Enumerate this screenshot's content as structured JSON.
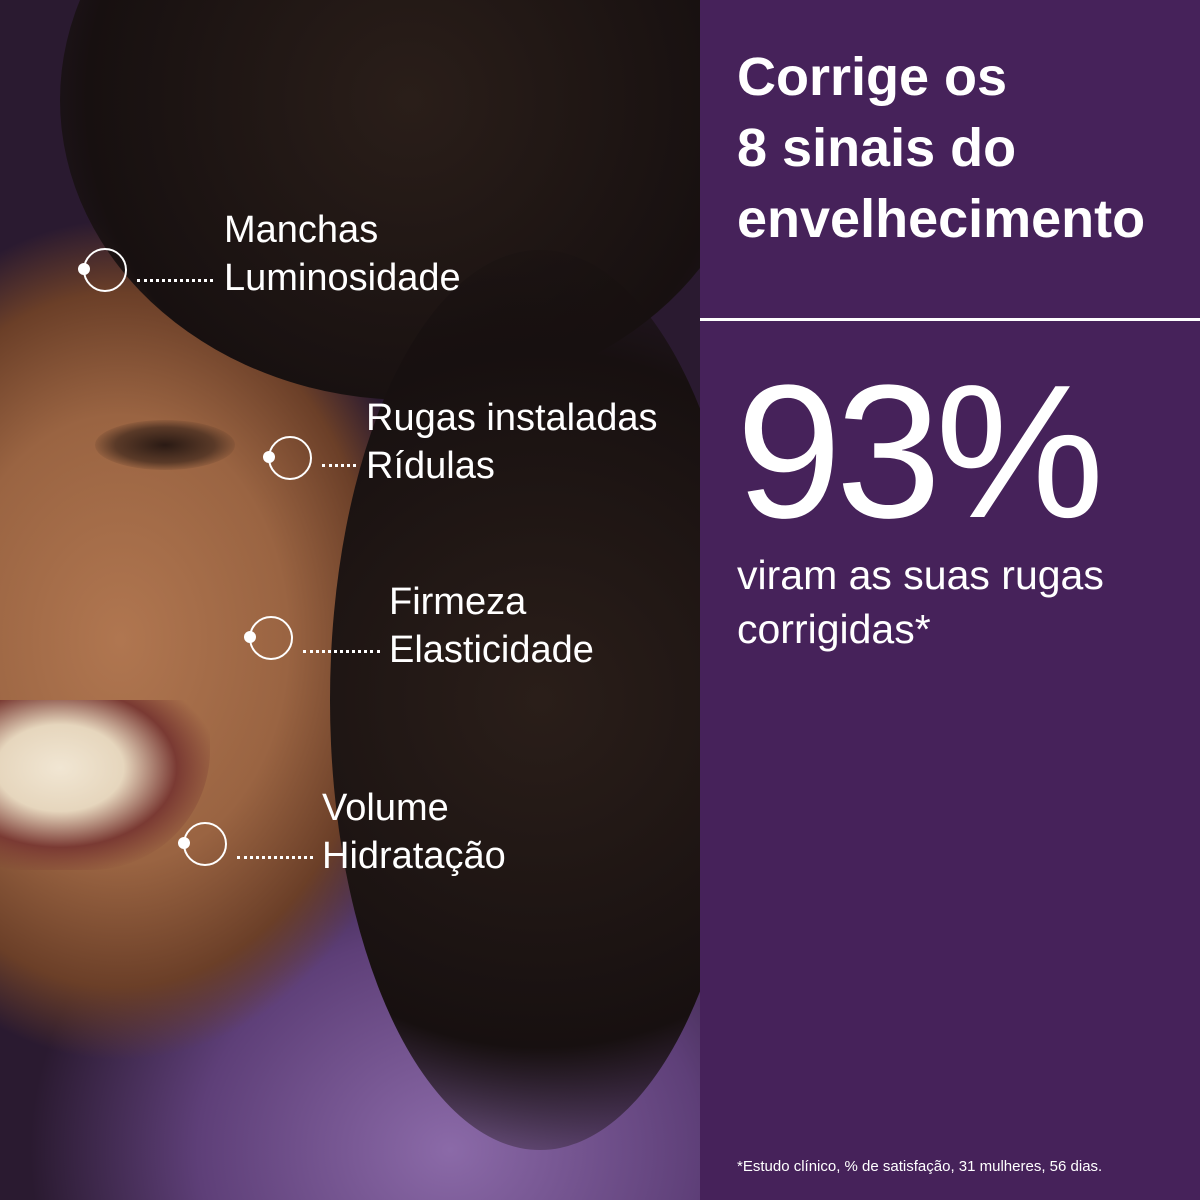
{
  "colors": {
    "panel": "#46225a",
    "text": "#ffffff"
  },
  "markers": [
    {
      "icon": "target-circle-icon",
      "lines": [
        "Manchas",
        "Luminosidade"
      ]
    },
    {
      "icon": "target-circle-icon",
      "lines": [
        "Rugas instaladas",
        "Rídulas"
      ]
    },
    {
      "icon": "target-circle-icon",
      "lines": [
        "Firmeza",
        "Elasticidade"
      ]
    },
    {
      "icon": "target-circle-icon",
      "lines": [
        "Volume",
        "Hidratação"
      ]
    }
  ],
  "panel": {
    "title_lines": [
      "Corrige os",
      "8 sinais do",
      "envelhecimento"
    ],
    "stat": "93%",
    "stat_caption_lines": [
      "viram as suas rugas",
      "corrigidas*"
    ],
    "footnote": "*Estudo clínico, % de satisfação, 31 mulheres, 56 dias."
  }
}
